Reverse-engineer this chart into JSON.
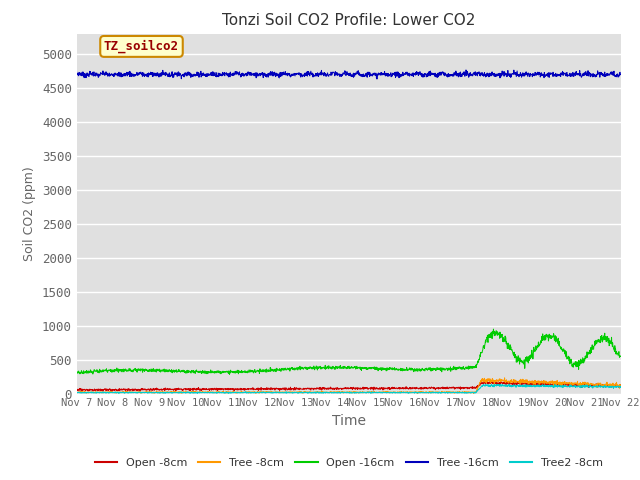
{
  "title": "Tonzi Soil CO2 Profile: Lower CO2",
  "ylabel": "Soil CO2 (ppm)",
  "xlabel": "Time",
  "ylim": [
    0,
    5300
  ],
  "yticks": [
    0,
    500,
    1000,
    1500,
    2000,
    2500,
    3000,
    3500,
    4000,
    4500,
    5000
  ],
  "bg_color": "#e0e0e0",
  "fig_bg": "#ffffff",
  "legend_label": "TZ_soilco2",
  "legend_box_color": "#ffffcc",
  "legend_box_edge": "#cc8800",
  "tick_color": "#666666",
  "series": {
    "open_8cm": {
      "color": "#cc0000",
      "label": "Open -8cm"
    },
    "tree_8cm": {
      "color": "#ff9900",
      "label": "Tree -8cm"
    },
    "open_16cm": {
      "color": "#00cc00",
      "label": "Open -16cm"
    },
    "tree_16cm": {
      "color": "#0000bb",
      "label": "Tree -16cm"
    },
    "tree2_8cm": {
      "color": "#00cccc",
      "label": "Tree2 -8cm"
    }
  },
  "x_tick_labels": [
    "Nov 7",
    "Nov 8",
    "Nov 9",
    "Nov 10",
    "Nov 11",
    "Nov 12",
    "Nov 13",
    "Nov 14",
    "Nov 15",
    "Nov 16",
    "Nov 17",
    "Nov 18",
    "Nov 19",
    "Nov 20",
    "Nov 21",
    "Nov 22"
  ],
  "num_points": 2000,
  "duration_days": 15
}
